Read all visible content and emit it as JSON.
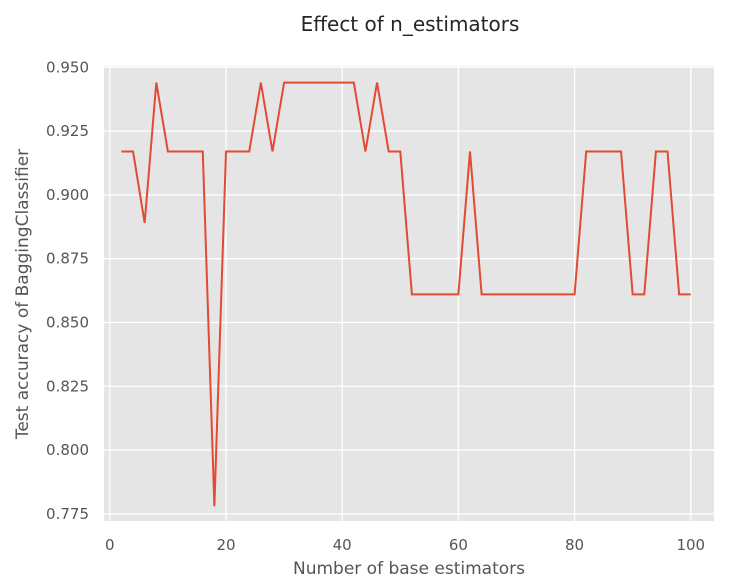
{
  "chart_data": {
    "type": "line",
    "title": "Effect of n_estimators",
    "xlabel": "Number of base estimators",
    "ylabel": "Test accuracy of BaggingClassifier",
    "xlim": [
      -1,
      104
    ],
    "ylim": [
      0.7722,
      0.9505
    ],
    "x_ticks": [
      0,
      20,
      40,
      60,
      80,
      100
    ],
    "x_tick_labels": [
      "0",
      "20",
      "40",
      "60",
      "80",
      "100"
    ],
    "y_ticks": [
      0.775,
      0.8,
      0.825,
      0.85,
      0.875,
      0.9,
      0.925,
      0.95
    ],
    "y_tick_labels": [
      "0.775",
      "0.800",
      "0.825",
      "0.850",
      "0.875",
      "0.900",
      "0.925",
      "0.950"
    ],
    "grid": true,
    "background": "#e5e5e5",
    "series": [
      {
        "color": "#e24a33",
        "x": [
          2,
          4,
          6,
          8,
          10,
          12,
          14,
          16,
          18,
          20,
          22,
          24,
          26,
          28,
          30,
          32,
          34,
          36,
          38,
          40,
          42,
          44,
          46,
          48,
          50,
          52,
          54,
          56,
          58,
          60,
          62,
          64,
          66,
          68,
          70,
          72,
          74,
          76,
          78,
          80,
          82,
          84,
          86,
          88,
          90,
          92,
          94,
          96,
          98,
          100
        ],
        "y": [
          0.917,
          0.917,
          0.889,
          0.944,
          0.917,
          0.917,
          0.917,
          0.917,
          0.778,
          0.917,
          0.917,
          0.917,
          0.944,
          0.917,
          0.944,
          0.944,
          0.944,
          0.944,
          0.944,
          0.944,
          0.944,
          0.917,
          0.944,
          0.917,
          0.917,
          0.861,
          0.861,
          0.861,
          0.861,
          0.861,
          0.917,
          0.861,
          0.861,
          0.861,
          0.861,
          0.861,
          0.861,
          0.861,
          0.861,
          0.861,
          0.917,
          0.917,
          0.917,
          0.917,
          0.861,
          0.861,
          0.917,
          0.917,
          0.861,
          0.861
        ]
      }
    ]
  }
}
